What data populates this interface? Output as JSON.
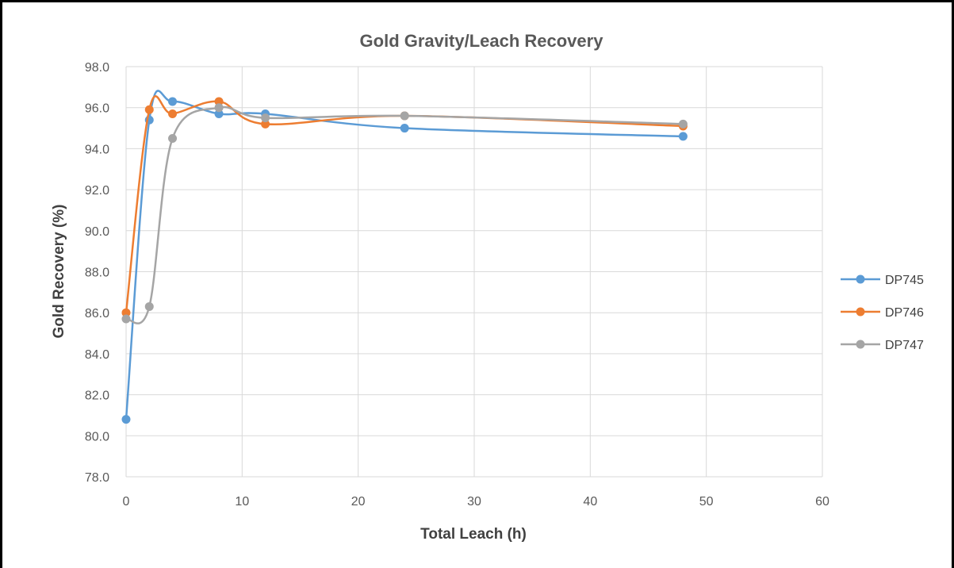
{
  "chart_data": {
    "type": "line",
    "smooth": true,
    "title": "Gold Gravity/Leach Recovery",
    "xlabel": "Total Leach (h)",
    "ylabel": "Gold Recovery (%)",
    "xlim": [
      0,
      60
    ],
    "ylim": [
      78,
      98
    ],
    "x_ticks": [
      "0",
      "10",
      "20",
      "30",
      "40",
      "50",
      "60"
    ],
    "y_ticks": [
      "78.0",
      "80.0",
      "82.0",
      "84.0",
      "86.0",
      "88.0",
      "90.0",
      "92.0",
      "94.0",
      "96.0",
      "98.0"
    ],
    "grid": true,
    "legend_position": "right",
    "series": [
      {
        "name": "DP745",
        "color": "#5B9BD5",
        "x": [
          0,
          2,
          4,
          8,
          12,
          24,
          48
        ],
        "y": [
          80.8,
          95.4,
          96.3,
          95.7,
          95.7,
          95.0,
          94.6
        ]
      },
      {
        "name": "DP746",
        "color": "#ED7D31",
        "x": [
          0,
          2,
          4,
          8,
          12,
          24,
          48
        ],
        "y": [
          86.0,
          95.9,
          95.7,
          96.3,
          95.2,
          95.6,
          95.1
        ]
      },
      {
        "name": "DP747",
        "color": "#A5A5A5",
        "x": [
          0,
          2,
          4,
          8,
          12,
          24,
          48
        ],
        "y": [
          85.7,
          86.3,
          94.5,
          96.0,
          95.5,
          95.6,
          95.2
        ]
      }
    ]
  }
}
